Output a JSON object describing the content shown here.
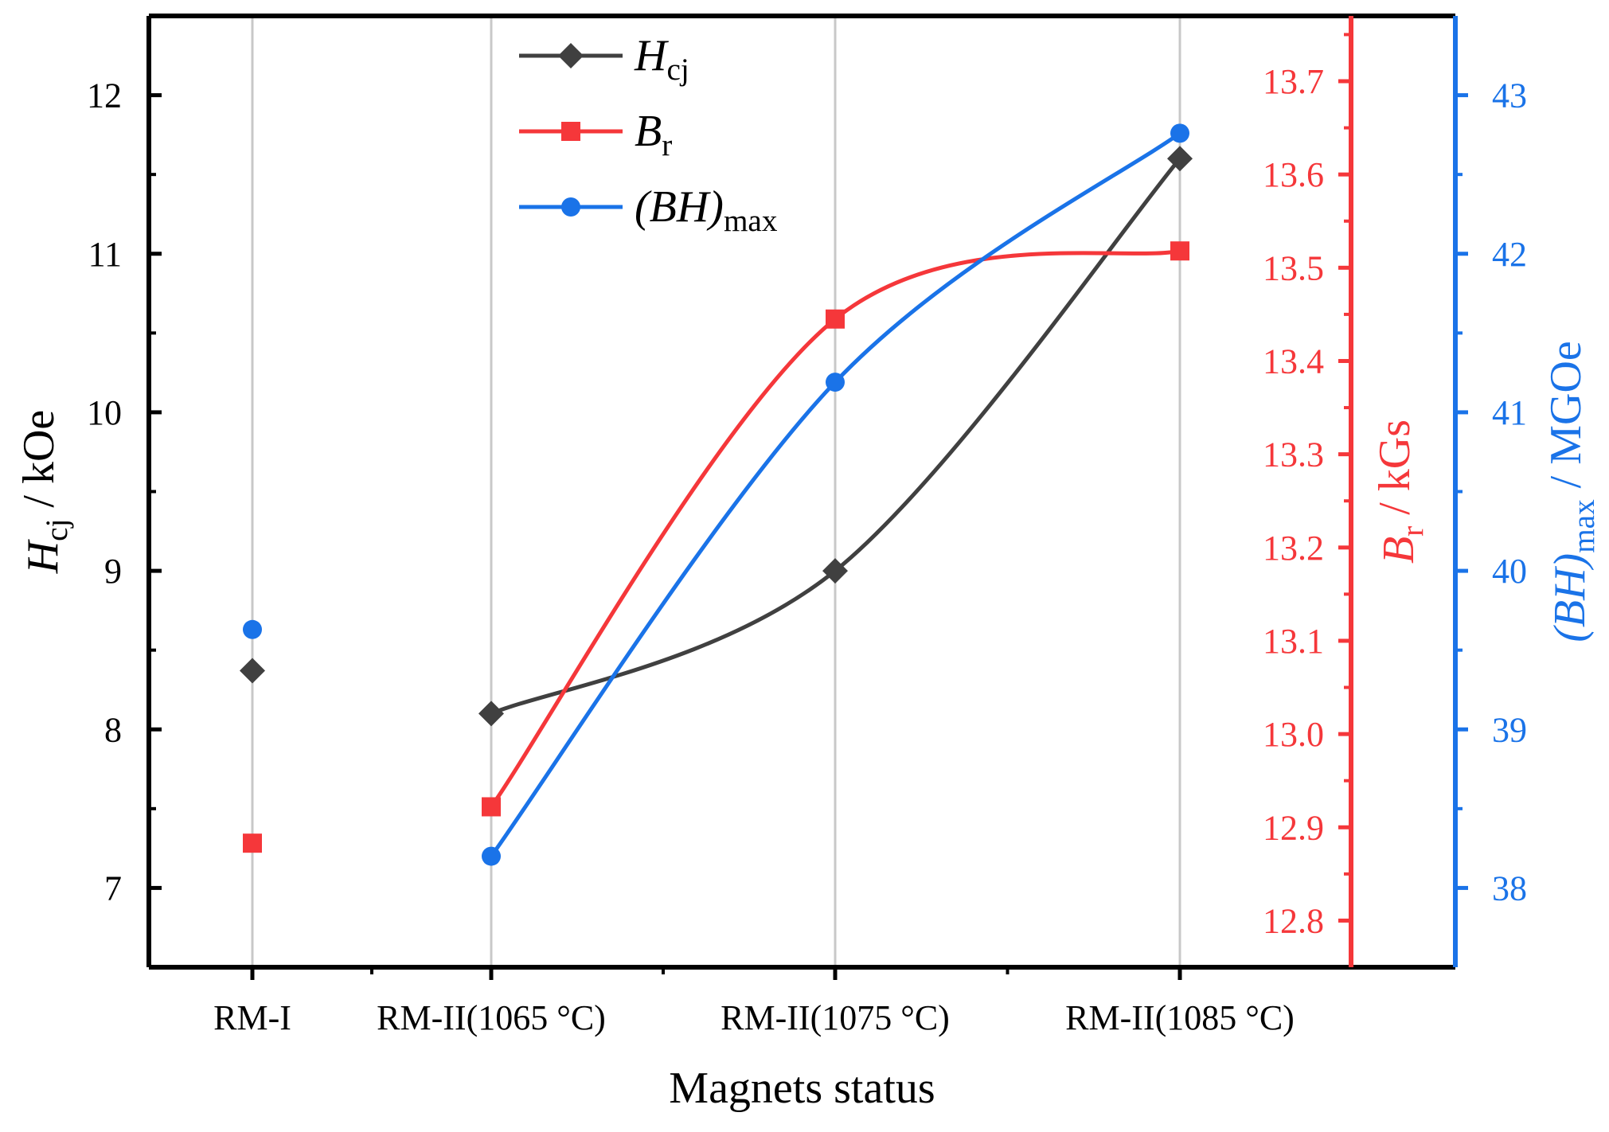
{
  "chart_data": {
    "type": "line",
    "categories": [
      "RM-I",
      "RM-II(1065 °C)",
      "RM-II(1075 °C)",
      "RM-II(1085 °C)"
    ],
    "xlabel": "Magnets status",
    "series": [
      {
        "key": "hcj",
        "name_main": "H",
        "name_sub": "cj",
        "name_suffix": "",
        "axis_main": "H",
        "axis_sub": "cj",
        "axis_suffix": " / kOe",
        "color": "#404040",
        "marker": "diamond",
        "values": [
          8.37,
          8.1,
          9.0,
          11.6
        ],
        "ylim": [
          6.5,
          12.5
        ],
        "ticks": [
          7,
          8,
          9,
          10,
          11,
          12
        ],
        "tick_labels": [
          "7",
          "8",
          "9",
          "10",
          "11",
          "12"
        ]
      },
      {
        "key": "br",
        "name_main": "B",
        "name_sub": "r",
        "name_suffix": "",
        "axis_main": "B",
        "axis_sub": "r",
        "axis_suffix": " / kGs",
        "color": "#f5373a",
        "marker": "square",
        "values": [
          12.883,
          12.922,
          13.445,
          13.518
        ],
        "ylim": [
          12.75,
          13.77
        ],
        "ticks": [
          12.8,
          12.9,
          13.0,
          13.1,
          13.2,
          13.3,
          13.4,
          13.5,
          13.6,
          13.7
        ],
        "tick_labels": [
          "12.8",
          "12.9",
          "13.0",
          "13.1",
          "13.2",
          "13.3",
          "13.4",
          "13.5",
          "13.6",
          "13.7"
        ]
      },
      {
        "key": "bhmax",
        "name_main": "(BH)",
        "name_sub": "max",
        "name_suffix": "",
        "axis_main": "(BH)",
        "axis_sub": "max",
        "axis_suffix": " / MGOe",
        "color": "#1a73e8",
        "marker": "circle",
        "values": [
          39.63,
          38.2,
          41.19,
          42.76
        ],
        "ylim": [
          37.5,
          43.5
        ],
        "ticks": [
          38,
          39,
          40,
          41,
          42,
          43
        ],
        "tick_labels": [
          "38",
          "39",
          "40",
          "41",
          "42",
          "43"
        ]
      }
    ],
    "grid": "vertical at categories",
    "legend": "top-left"
  }
}
